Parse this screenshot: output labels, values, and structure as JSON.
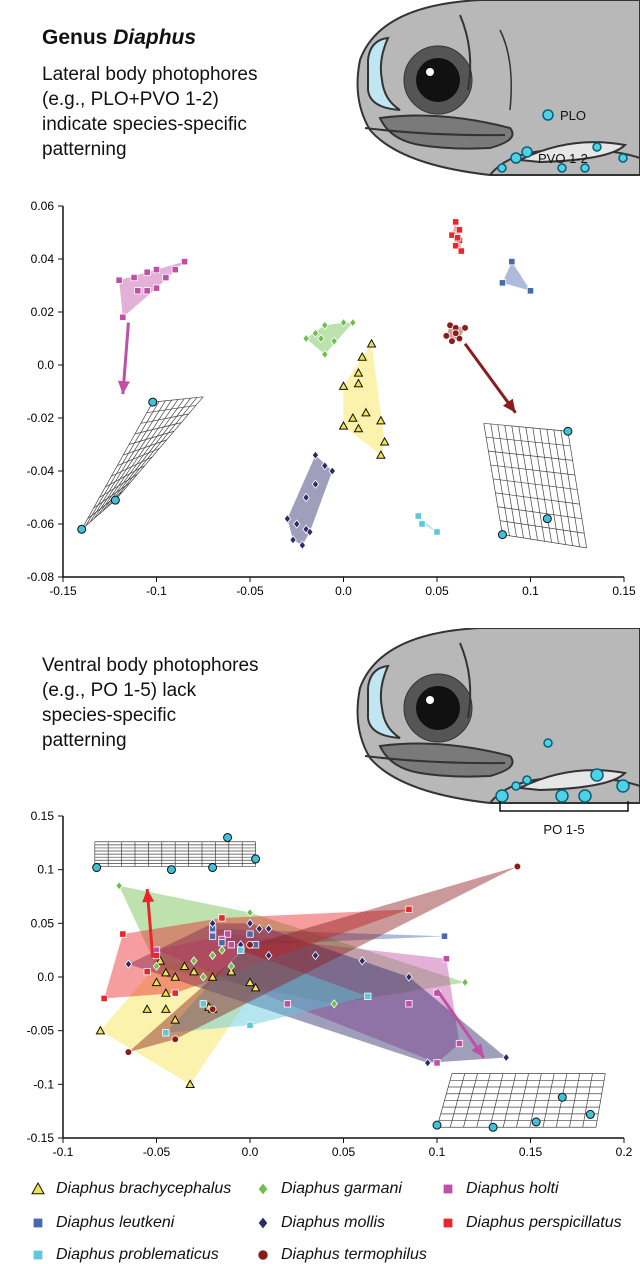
{
  "header": {
    "title_plain": "Genus ",
    "title_italic": "Diaphus"
  },
  "top_caption": [
    "Lateral body photophores",
    "(e.g., PLO+PVO 1-2)",
    "indicate species-specific",
    "patterning"
  ],
  "bottom_caption": [
    "Ventral body photophores",
    "(e.g., PO 1-5) lack",
    "species-specific",
    "patterning"
  ],
  "fish_top_labels": {
    "plo": "PLO",
    "pvo": "PVO 1-2"
  },
  "fish_bottom_labels": {
    "po": "PO 1-5"
  },
  "colors": {
    "brachycephalus": "#f3e24a",
    "garmani": "#6cbf4a",
    "holti": "#c04fa6",
    "leutkeni": "#4a68b0",
    "mollis": "#2b2a6b",
    "perspicillatus": "#e8262b",
    "problematicus": "#5cc8dc",
    "termophilus": "#8b1c1c"
  },
  "legend": [
    {
      "key": "brachycephalus",
      "label": "Diaphus brachycephalus",
      "marker": "triangle-icon"
    },
    {
      "key": "garmani",
      "label": "Diaphus garmani",
      "marker": "diamond-icon"
    },
    {
      "key": "holti",
      "label": "Diaphus holti",
      "marker": "square-icon"
    },
    {
      "key": "leutkeni",
      "label": "Diaphus leutkeni",
      "marker": "square-icon"
    },
    {
      "key": "mollis",
      "label": "Diaphus mollis",
      "marker": "diamond-icon"
    },
    {
      "key": "perspicillatus",
      "label": "Diaphus perspicillatus",
      "marker": "square-icon"
    },
    {
      "key": "problematicus",
      "label": "Diaphus problematicus",
      "marker": "square-icon"
    },
    {
      "key": "termophilus",
      "label": "Diaphus termophilus",
      "marker": "circle-icon"
    }
  ],
  "chart_data": [
    {
      "type": "scatter",
      "title": "",
      "xlim": [
        -0.15,
        0.15
      ],
      "ylim": [
        -0.08,
        0.06
      ],
      "xticks": [
        "-0.15",
        "-0.1",
        "-0.05",
        "0.0",
        "0.05",
        "0.1",
        "0.15"
      ],
      "yticks": [
        "0.06",
        "0.04",
        "0.02",
        "0.0",
        "-0.02",
        "-0.04",
        "-0.06",
        "-0.08"
      ],
      "series": [
        {
          "key": "holti",
          "hull": true,
          "points": [
            [
              -0.12,
              0.032
            ],
            [
              -0.112,
              0.033
            ],
            [
              -0.105,
              0.035
            ],
            [
              -0.1,
              0.036
            ],
            [
              -0.095,
              0.033
            ],
            [
              -0.085,
              0.039
            ],
            [
              -0.09,
              0.036
            ],
            [
              -0.11,
              0.028
            ],
            [
              -0.105,
              0.028
            ],
            [
              -0.118,
              0.018
            ],
            [
              -0.1,
              0.029
            ]
          ]
        },
        {
          "key": "garmani",
          "hull": true,
          "points": [
            [
              -0.02,
              0.01
            ],
            [
              -0.015,
              0.012
            ],
            [
              -0.01,
              0.015
            ],
            [
              0.0,
              0.016
            ],
            [
              0.005,
              0.016
            ],
            [
              -0.01,
              0.004
            ],
            [
              -0.005,
              0.009
            ],
            [
              -0.012,
              0.01
            ]
          ]
        },
        {
          "key": "brachycephalus",
          "hull": true,
          "points": [
            [
              0.015,
              0.008
            ],
            [
              0.01,
              0.003
            ],
            [
              0.008,
              -0.003
            ],
            [
              0.0,
              -0.008
            ],
            [
              0.008,
              -0.007
            ],
            [
              0.012,
              -0.018
            ],
            [
              0.005,
              -0.02
            ],
            [
              0.0,
              -0.023
            ],
            [
              0.02,
              -0.021
            ],
            [
              0.008,
              -0.024
            ],
            [
              0.022,
              -0.029
            ],
            [
              0.02,
              -0.034
            ]
          ]
        },
        {
          "key": "mollis",
          "hull": true,
          "points": [
            [
              -0.015,
              -0.034
            ],
            [
              -0.01,
              -0.038
            ],
            [
              -0.006,
              -0.04
            ],
            [
              -0.015,
              -0.045
            ],
            [
              -0.02,
              -0.05
            ],
            [
              -0.03,
              -0.058
            ],
            [
              -0.025,
              -0.06
            ],
            [
              -0.02,
              -0.062
            ],
            [
              -0.027,
              -0.066
            ],
            [
              -0.022,
              -0.068
            ],
            [
              -0.018,
              -0.063
            ]
          ]
        },
        {
          "key": "problematicus",
          "hull": true,
          "points": [
            [
              0.04,
              -0.057
            ],
            [
              0.042,
              -0.06
            ],
            [
              0.05,
              -0.063
            ]
          ]
        },
        {
          "key": "perspicillatus",
          "hull": true,
          "points": [
            [
              0.06,
              0.054
            ],
            [
              0.062,
              0.051
            ],
            [
              0.058,
              0.049
            ],
            [
              0.062,
              0.047
            ],
            [
              0.06,
              0.045
            ],
            [
              0.063,
              0.043
            ],
            [
              0.061,
              0.048
            ]
          ]
        },
        {
          "key": "leutkeni",
          "hull": true,
          "points": [
            [
              0.09,
              0.039
            ],
            [
              0.085,
              0.031
            ],
            [
              0.1,
              0.028
            ]
          ]
        },
        {
          "key": "termophilus",
          "hull": true,
          "points": [
            [
              0.057,
              0.015
            ],
            [
              0.06,
              0.014
            ],
            [
              0.065,
              0.014
            ],
            [
              0.055,
              0.011
            ],
            [
              0.058,
              0.009
            ],
            [
              0.062,
              0.01
            ],
            [
              0.06,
              0.012
            ]
          ]
        }
      ],
      "arrows": [
        {
          "key": "holti",
          "from": [
            -0.115,
            0.016
          ],
          "to": [
            -0.118,
            -0.011
          ]
        },
        {
          "key": "termophilus",
          "from": [
            0.065,
            0.008
          ],
          "to": [
            0.092,
            -0.018
          ]
        }
      ],
      "grids": [
        {
          "corners": [
            [
              -0.14,
              -0.062
            ],
            [
              -0.102,
              -0.014
            ],
            [
              -0.075,
              -0.012
            ],
            [
              -0.122,
              -0.051
            ]
          ],
          "dots": [
            [
              -0.14,
              -0.062
            ],
            [
              -0.102,
              -0.014
            ],
            [
              -0.122,
              -0.051
            ]
          ]
        },
        {
          "corners": [
            [
              0.075,
              -0.022
            ],
            [
              0.12,
              -0.025
            ],
            [
              0.13,
              -0.069
            ],
            [
              0.085,
              -0.064
            ]
          ],
          "dots": [
            [
              0.12,
              -0.025
            ],
            [
              0.109,
              -0.058
            ],
            [
              0.085,
              -0.064
            ]
          ]
        }
      ]
    },
    {
      "type": "scatter",
      "title": "",
      "xlim": [
        -0.1,
        0.2
      ],
      "ylim": [
        -0.15,
        0.15
      ],
      "xticks": [
        "-0.1",
        "-0.05",
        "0.0",
        "0.05",
        "0.1",
        "0.15",
        "0.2"
      ],
      "yticks": [
        "0.15",
        "0.1",
        "0.05",
        "0.0",
        "-0.05",
        "-0.1",
        "-0.15"
      ],
      "series": [
        {
          "key": "brachycephalus",
          "hull": true,
          "points": [
            [
              -0.048,
              0.015
            ],
            [
              -0.04,
              0.0
            ],
            [
              -0.03,
              0.005
            ],
            [
              -0.035,
              0.01
            ],
            [
              -0.05,
              -0.005
            ],
            [
              -0.045,
              -0.015
            ],
            [
              -0.055,
              -0.03
            ],
            [
              -0.045,
              -0.03
            ],
            [
              -0.04,
              -0.04
            ],
            [
              -0.08,
              -0.05
            ],
            [
              -0.02,
              -0.03
            ],
            [
              -0.022,
              -0.028
            ],
            [
              -0.02,
              0.0
            ],
            [
              0.0,
              -0.005
            ],
            [
              -0.01,
              0.005
            ],
            [
              0.003,
              -0.01
            ],
            [
              -0.032,
              -0.1
            ],
            [
              -0.045,
              0.004
            ]
          ]
        },
        {
          "key": "garmani",
          "hull": true,
          "points": [
            [
              -0.07,
              0.085
            ],
            [
              0.0,
              0.06
            ],
            [
              -0.02,
              0.02
            ],
            [
              -0.015,
              0.025
            ],
            [
              -0.025,
              0.0
            ],
            [
              -0.03,
              0.015
            ],
            [
              -0.01,
              0.01
            ],
            [
              0.045,
              -0.025
            ],
            [
              0.115,
              -0.005
            ],
            [
              -0.05,
              0.01
            ]
          ]
        },
        {
          "key": "holti",
          "hull": true,
          "points": [
            [
              -0.05,
              0.025
            ],
            [
              -0.012,
              0.04
            ],
            [
              -0.015,
              0.035
            ],
            [
              -0.01,
              0.03
            ],
            [
              0.02,
              -0.025
            ],
            [
              0.085,
              -0.025
            ],
            [
              0.105,
              0.017
            ],
            [
              0.1,
              -0.015
            ],
            [
              0.112,
              -0.062
            ],
            [
              0.1,
              -0.08
            ],
            [
              -0.005,
              0.025
            ]
          ]
        },
        {
          "key": "leutkeni",
          "hull": true,
          "points": [
            [
              -0.02,
              0.045
            ],
            [
              -0.02,
              0.038
            ],
            [
              0.0,
              0.04
            ],
            [
              0.104,
              0.038
            ],
            [
              0.003,
              0.03
            ],
            [
              -0.015,
              0.032
            ]
          ]
        },
        {
          "key": "mollis",
          "hull": true,
          "points": [
            [
              -0.065,
              0.012
            ],
            [
              -0.02,
              0.05
            ],
            [
              0.0,
              0.05
            ],
            [
              0.005,
              0.045
            ],
            [
              -0.005,
              0.03
            ],
            [
              0.01,
              0.02
            ],
            [
              0.035,
              0.02
            ],
            [
              0.06,
              0.015
            ],
            [
              0.085,
              0.0
            ],
            [
              0.137,
              -0.075
            ],
            [
              0.095,
              -0.08
            ],
            [
              0.01,
              0.045
            ]
          ]
        },
        {
          "key": "perspicillatus",
          "hull": true,
          "points": [
            [
              -0.078,
              -0.02
            ],
            [
              -0.068,
              0.04
            ],
            [
              -0.05,
              0.02
            ],
            [
              -0.015,
              0.055
            ],
            [
              0.085,
              0.063
            ],
            [
              -0.04,
              -0.015
            ],
            [
              -0.055,
              0.005
            ]
          ]
        },
        {
          "key": "problematicus",
          "hull": true,
          "points": [
            [
              -0.045,
              -0.052
            ],
            [
              -0.025,
              -0.025
            ],
            [
              -0.005,
              0.025
            ],
            [
              0.063,
              -0.018
            ],
            [
              0.0,
              -0.045
            ]
          ]
        },
        {
          "key": "termophilus",
          "hull": true,
          "points": [
            [
              -0.065,
              -0.07
            ],
            [
              -0.04,
              -0.058
            ],
            [
              0.0,
              0.03
            ],
            [
              0.143,
              0.103
            ],
            [
              -0.02,
              -0.03
            ]
          ]
        }
      ],
      "arrows": [
        {
          "key": "perspicillatus",
          "from": [
            -0.052,
            0.018
          ],
          "to": [
            -0.055,
            0.082
          ]
        },
        {
          "key": "holti",
          "from": [
            0.1,
            -0.012
          ],
          "to": [
            0.125,
            -0.075
          ]
        }
      ],
      "grids": [
        {
          "corners": [
            [
              -0.083,
              0.126
            ],
            [
              0.003,
              0.126
            ],
            [
              0.003,
              0.103
            ],
            [
              -0.083,
              0.103
            ]
          ],
          "dots": [
            [
              -0.082,
              0.102
            ],
            [
              -0.042,
              0.1
            ],
            [
              -0.02,
              0.102
            ],
            [
              -0.012,
              0.13
            ],
            [
              0.003,
              0.11
            ]
          ]
        },
        {
          "corners": [
            [
              0.108,
              -0.09
            ],
            [
              0.19,
              -0.09
            ],
            [
              0.185,
              -0.14
            ],
            [
              0.1,
              -0.14
            ]
          ],
          "dots": [
            [
              0.1,
              -0.138
            ],
            [
              0.13,
              -0.14
            ],
            [
              0.153,
              -0.135
            ],
            [
              0.167,
              -0.112
            ],
            [
              0.182,
              -0.128
            ]
          ]
        }
      ]
    }
  ]
}
